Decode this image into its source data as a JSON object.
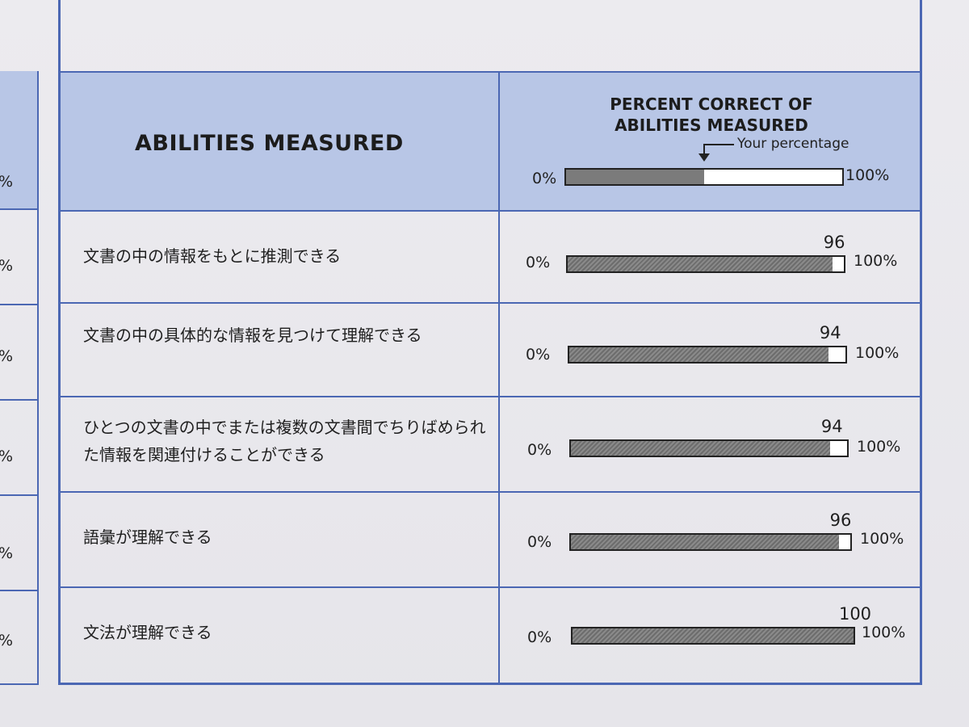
{
  "header": {
    "column_title": "ABILITIES MEASURED",
    "percent_title_line1": "PERCENT CORRECT OF",
    "percent_title_line2": "ABILITIES MEASURED",
    "your_percentage": "Your percentage",
    "legend_min": "0%",
    "legend_max": "100%",
    "legend_fill_fraction": 0.5
  },
  "rows": [
    {
      "label": "文書の中の情報をもとに推測できる",
      "value": 96,
      "value_text": "96",
      "min": "0%",
      "max": "100%"
    },
    {
      "label": "文書の中の具体的な情報を見つけて理解できる",
      "value": 94,
      "value_text": "94",
      "min": "0%",
      "max": "100%"
    },
    {
      "label": "ひとつの文書の中でまたは複数の文書間でちりばめられた情報を関連付けることができる",
      "value": 94,
      "value_text": "94",
      "min": "0%",
      "max": "100%"
    },
    {
      "label": "語彙が理解できる",
      "value": 96,
      "value_text": "96",
      "min": "0%",
      "max": "100%"
    },
    {
      "label": "文法が理解できる",
      "value": 100,
      "value_text": "100",
      "min": "0%",
      "max": "100%"
    }
  ],
  "left_table": {
    "pct_marks": [
      "%",
      "%",
      "%",
      "%",
      "%",
      "%"
    ]
  },
  "colors": {
    "header_bg": "#b8c6e6",
    "border": "#4b67b3"
  }
}
